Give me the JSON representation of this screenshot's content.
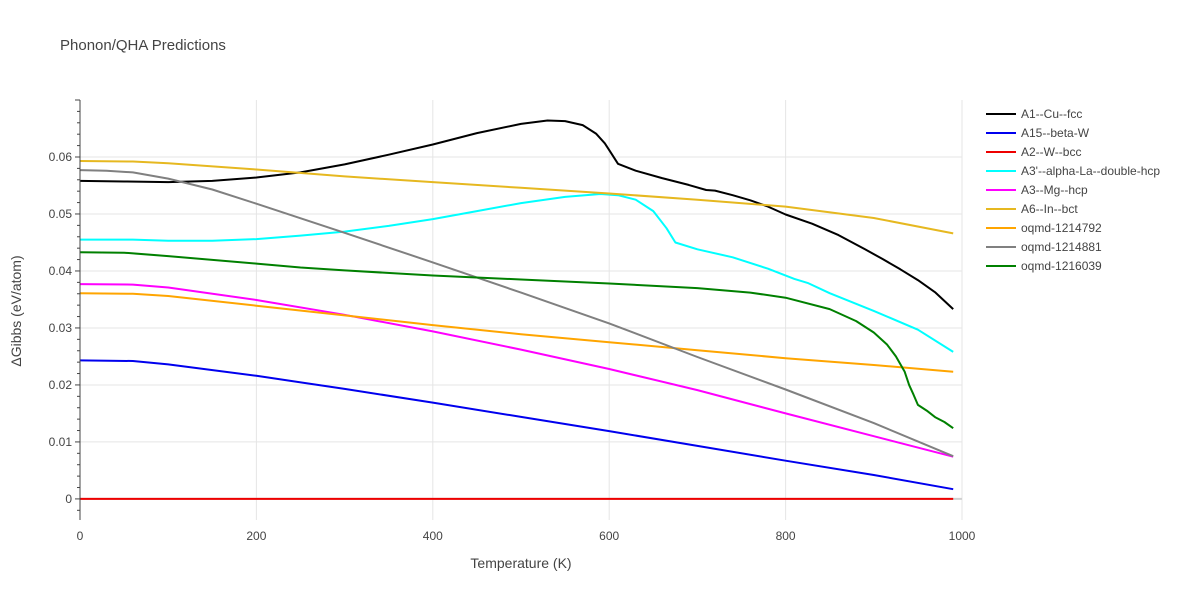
{
  "chart_data": {
    "type": "line",
    "title": "Phonon/QHA Predictions",
    "xlabel": "Temperature (K)",
    "ylabel": "ΔGibbs (eV/atom)",
    "xlim": [
      0,
      1000
    ],
    "ylim": [
      -0.0037,
      0.07
    ],
    "xticks": [
      0,
      200,
      400,
      600,
      800,
      1000
    ],
    "yticks": [
      0,
      0.01,
      0.02,
      0.03,
      0.04,
      0.05,
      0.06
    ],
    "xtick_labels": [
      "0",
      "200",
      "400",
      "600",
      "800",
      "1000"
    ],
    "ytick_labels": [
      "0",
      "0.01",
      "0.02",
      "0.03",
      "0.04",
      "0.05",
      "0.06"
    ],
    "grid": true,
    "legend_position": "right",
    "series": [
      {
        "name": "A1--Cu--fcc",
        "color": "#000000",
        "points": [
          [
            0,
            0.0558
          ],
          [
            50,
            0.0557
          ],
          [
            100,
            0.0556
          ],
          [
            150,
            0.0558
          ],
          [
            200,
            0.0564
          ],
          [
            250,
            0.0573
          ],
          [
            300,
            0.0587
          ],
          [
            350,
            0.0604
          ],
          [
            400,
            0.0622
          ],
          [
            450,
            0.0642
          ],
          [
            500,
            0.0658
          ],
          [
            530,
            0.0664
          ],
          [
            550,
            0.0663
          ],
          [
            570,
            0.0656
          ],
          [
            585,
            0.0641
          ],
          [
            595,
            0.0624
          ],
          [
            600,
            0.0612
          ],
          [
            610,
            0.0588
          ],
          [
            630,
            0.0576
          ],
          [
            660,
            0.0563
          ],
          [
            690,
            0.0551
          ],
          [
            710,
            0.0542
          ],
          [
            720,
            0.0541
          ],
          [
            740,
            0.0533
          ],
          [
            760,
            0.0524
          ],
          [
            780,
            0.0513
          ],
          [
            800,
            0.0499
          ],
          [
            830,
            0.0483
          ],
          [
            860,
            0.0463
          ],
          [
            890,
            0.0438
          ],
          [
            910,
            0.0421
          ],
          [
            930,
            0.0403
          ],
          [
            950,
            0.0384
          ],
          [
            970,
            0.0362
          ],
          [
            990,
            0.0333
          ]
        ]
      },
      {
        "name": "A15--beta-W",
        "color": "#0000ee",
        "points": [
          [
            0,
            0.0243
          ],
          [
            60,
            0.0242
          ],
          [
            100,
            0.0236
          ],
          [
            200,
            0.0216
          ],
          [
            300,
            0.0193
          ],
          [
            400,
            0.0169
          ],
          [
            500,
            0.0144
          ],
          [
            600,
            0.0119
          ],
          [
            700,
            0.0093
          ],
          [
            800,
            0.0067
          ],
          [
            900,
            0.0042
          ],
          [
            990,
            0.0017
          ]
        ]
      },
      {
        "name": "A2--W--bcc",
        "color": "#ee0000",
        "points": [
          [
            0,
            0
          ],
          [
            990,
            0
          ]
        ]
      },
      {
        "name": "A3'--alpha-La--double-hcp",
        "color": "#00ffff",
        "points": [
          [
            0,
            0.0455
          ],
          [
            60,
            0.0455
          ],
          [
            100,
            0.0453
          ],
          [
            150,
            0.0453
          ],
          [
            200,
            0.0456
          ],
          [
            250,
            0.0462
          ],
          [
            300,
            0.0469
          ],
          [
            350,
            0.0479
          ],
          [
            400,
            0.0491
          ],
          [
            450,
            0.0505
          ],
          [
            500,
            0.0519
          ],
          [
            550,
            0.053
          ],
          [
            590,
            0.0535
          ],
          [
            610,
            0.0533
          ],
          [
            630,
            0.0525
          ],
          [
            650,
            0.0505
          ],
          [
            665,
            0.0475
          ],
          [
            675,
            0.045
          ],
          [
            700,
            0.0438
          ],
          [
            740,
            0.0424
          ],
          [
            780,
            0.0404
          ],
          [
            810,
            0.0386
          ],
          [
            825,
            0.0379
          ],
          [
            850,
            0.0361
          ],
          [
            900,
            0.033
          ],
          [
            950,
            0.0297
          ],
          [
            990,
            0.0258
          ]
        ]
      },
      {
        "name": "A3--Mg--hcp",
        "color": "#ff00ff",
        "points": [
          [
            0,
            0.0377
          ],
          [
            60,
            0.0376
          ],
          [
            100,
            0.0371
          ],
          [
            200,
            0.0349
          ],
          [
            300,
            0.0323
          ],
          [
            400,
            0.0294
          ],
          [
            500,
            0.0262
          ],
          [
            600,
            0.0228
          ],
          [
            700,
            0.0191
          ],
          [
            800,
            0.015
          ],
          [
            900,
            0.011
          ],
          [
            990,
            0.0074
          ]
        ]
      },
      {
        "name": "A6--In--bct",
        "color": "#e6b820",
        "points": [
          [
            0,
            0.0593
          ],
          [
            60,
            0.0592
          ],
          [
            100,
            0.0589
          ],
          [
            200,
            0.0578
          ],
          [
            300,
            0.0566
          ],
          [
            400,
            0.0556
          ],
          [
            500,
            0.0546
          ],
          [
            600,
            0.0536
          ],
          [
            700,
            0.0525
          ],
          [
            800,
            0.0513
          ],
          [
            900,
            0.0493
          ],
          [
            990,
            0.0466
          ]
        ]
      },
      {
        "name": "oqmd-1214792",
        "color": "#ffa500",
        "points": [
          [
            0,
            0.0361
          ],
          [
            60,
            0.036
          ],
          [
            100,
            0.0356
          ],
          [
            200,
            0.0339
          ],
          [
            300,
            0.0322
          ],
          [
            400,
            0.0305
          ],
          [
            500,
            0.0289
          ],
          [
            600,
            0.0275
          ],
          [
            700,
            0.0261
          ],
          [
            800,
            0.0247
          ],
          [
            900,
            0.0235
          ],
          [
            990,
            0.0223
          ]
        ]
      },
      {
        "name": "oqmd-1214881",
        "color": "#808080",
        "points": [
          [
            0,
            0.0577
          ],
          [
            30,
            0.0576
          ],
          [
            60,
            0.0573
          ],
          [
            100,
            0.0562
          ],
          [
            150,
            0.0543
          ],
          [
            200,
            0.0518
          ],
          [
            300,
            0.0467
          ],
          [
            400,
            0.0415
          ],
          [
            500,
            0.0362
          ],
          [
            600,
            0.0308
          ],
          [
            700,
            0.0249
          ],
          [
            800,
            0.0192
          ],
          [
            900,
            0.0133
          ],
          [
            990,
            0.0075
          ]
        ]
      },
      {
        "name": "oqmd-1216039",
        "color": "#008000",
        "points": [
          [
            0,
            0.0433
          ],
          [
            50,
            0.0432
          ],
          [
            100,
            0.0426
          ],
          [
            200,
            0.0413
          ],
          [
            250,
            0.0406
          ],
          [
            300,
            0.0401
          ],
          [
            400,
            0.0392
          ],
          [
            500,
            0.0385
          ],
          [
            600,
            0.0378
          ],
          [
            700,
            0.037
          ],
          [
            760,
            0.0362
          ],
          [
            800,
            0.0353
          ],
          [
            850,
            0.0333
          ],
          [
            880,
            0.0312
          ],
          [
            900,
            0.0292
          ],
          [
            915,
            0.0271
          ],
          [
            925,
            0.025
          ],
          [
            935,
            0.0223
          ],
          [
            940,
            0.02
          ],
          [
            945,
            0.0183
          ],
          [
            950,
            0.0165
          ],
          [
            960,
            0.0155
          ],
          [
            970,
            0.0143
          ],
          [
            980,
            0.0135
          ],
          [
            990,
            0.0124
          ]
        ]
      }
    ]
  }
}
